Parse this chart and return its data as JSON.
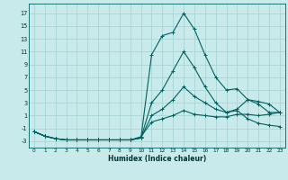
{
  "xlabel": "Humidex (Indice chaleur)",
  "bg_color": "#c8eaea",
  "grid_color": "#aad4d4",
  "line_color": "#006060",
  "xlim": [
    -0.5,
    23.5
  ],
  "ylim": [
    -4.0,
    18.5
  ],
  "xticks": [
    0,
    1,
    2,
    3,
    4,
    5,
    6,
    7,
    8,
    9,
    10,
    11,
    12,
    13,
    14,
    15,
    16,
    17,
    18,
    19,
    20,
    21,
    22,
    23
  ],
  "yticks": [
    -3,
    -1,
    1,
    3,
    5,
    7,
    9,
    11,
    13,
    15,
    17
  ],
  "series": [
    {
      "x": [
        0,
        1,
        2,
        3,
        4,
        5,
        6,
        7,
        8,
        9,
        10,
        11,
        12,
        13,
        14,
        15,
        16,
        17,
        18,
        19,
        20,
        21,
        22,
        23
      ],
      "y": [
        -1.5,
        -2.2,
        -2.6,
        -2.8,
        -2.8,
        -2.8,
        -2.8,
        -2.8,
        -2.8,
        -2.8,
        -2.5,
        10.5,
        13.5,
        14.0,
        17.0,
        14.5,
        10.5,
        7.0,
        5.0,
        5.2,
        3.5,
        2.8,
        1.5,
        1.5
      ]
    },
    {
      "x": [
        0,
        1,
        2,
        3,
        4,
        5,
        6,
        7,
        8,
        9,
        10,
        11,
        12,
        13,
        14,
        15,
        16,
        17,
        18,
        19,
        20,
        21,
        22,
        23
      ],
      "y": [
        -1.5,
        -2.2,
        -2.6,
        -2.8,
        -2.8,
        -2.8,
        -2.8,
        -2.8,
        -2.8,
        -2.8,
        -2.5,
        3.0,
        5.0,
        8.0,
        11.0,
        8.5,
        5.5,
        3.0,
        1.5,
        1.8,
        0.5,
        -0.2,
        -0.5,
        -0.7
      ]
    },
    {
      "x": [
        0,
        1,
        2,
        3,
        4,
        5,
        6,
        7,
        8,
        9,
        10,
        11,
        12,
        13,
        14,
        15,
        16,
        17,
        18,
        19,
        20,
        21,
        22,
        23
      ],
      "y": [
        -1.5,
        -2.2,
        -2.6,
        -2.8,
        -2.8,
        -2.8,
        -2.8,
        -2.8,
        -2.8,
        -2.8,
        -2.5,
        1.0,
        2.0,
        3.5,
        5.5,
        4.0,
        3.0,
        2.0,
        1.5,
        2.0,
        3.5,
        3.2,
        2.8,
        1.5
      ]
    },
    {
      "x": [
        0,
        1,
        2,
        3,
        4,
        5,
        6,
        7,
        8,
        9,
        10,
        11,
        12,
        13,
        14,
        15,
        16,
        17,
        18,
        19,
        20,
        21,
        22,
        23
      ],
      "y": [
        -1.5,
        -2.2,
        -2.6,
        -2.8,
        -2.8,
        -2.8,
        -2.8,
        -2.8,
        -2.8,
        -2.8,
        -2.3,
        0.0,
        0.5,
        1.0,
        1.8,
        1.2,
        1.0,
        0.8,
        0.8,
        1.2,
        1.2,
        1.0,
        1.2,
        1.5
      ]
    }
  ]
}
